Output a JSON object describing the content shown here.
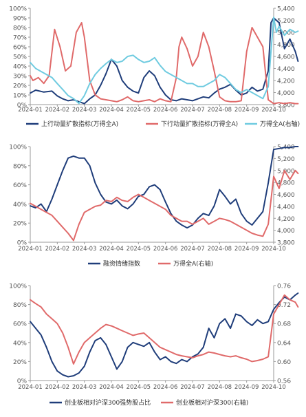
{
  "colors": {
    "navy": "#1f3d7a",
    "red": "#e06a6a",
    "cyan": "#6fcbe0",
    "axis": "#9a9a9a",
    "text": "#555555"
  },
  "chart_data": [
    {
      "type": "line",
      "x_ticks": [
        "2024-01",
        "2024-02",
        "2024-03",
        "2024-04",
        "2024-05",
        "2024-06",
        "2024-07",
        "2024-08",
        "2024-09",
        "2024-10"
      ],
      "left_axis": {
        "ticks": [
          "0%",
          "10%",
          "20%",
          "30%",
          "40%",
          "50%",
          "60%",
          "70%",
          "80%",
          "90%",
          "100%"
        ],
        "range": [
          0,
          100
        ]
      },
      "right_axis": {
        "ticks": [
          "3,800",
          "4,000",
          "4,200",
          "4,400",
          "4,600",
          "4,800",
          "5,000",
          "5,200",
          "5,400"
        ],
        "range": [
          3800,
          5400
        ]
      },
      "legend_position": "bottom",
      "series": [
        {
          "name": "上行动量扩散指标(万得全A)",
          "axis": "left",
          "color": "navy",
          "x": [
            0,
            0.2,
            0.5,
            0.8,
            1.0,
            1.2,
            1.4,
            1.6,
            1.8,
            2.0,
            2.2,
            2.4,
            2.6,
            2.8,
            3.0,
            3.2,
            3.4,
            3.6,
            3.8,
            4.0,
            4.2,
            4.4,
            4.6,
            4.8,
            5.0,
            5.2,
            5.4,
            5.6,
            5.8,
            6.0,
            6.2,
            6.4,
            6.6,
            6.8,
            7.0,
            7.2,
            7.4,
            7.6,
            7.8,
            8.0,
            8.2,
            8.4,
            8.6,
            8.8,
            8.9,
            9.0,
            9.2,
            9.4,
            9.6,
            9.8,
            9.9
          ],
          "y": [
            12,
            15,
            13,
            14,
            9,
            6,
            4,
            5,
            3,
            1,
            6,
            10,
            20,
            32,
            47,
            40,
            25,
            18,
            14,
            12,
            28,
            35,
            30,
            18,
            10,
            5,
            4,
            6,
            5,
            4,
            6,
            8,
            7,
            12,
            16,
            18,
            21,
            15,
            10,
            12,
            18,
            14,
            16,
            35,
            85,
            90,
            85,
            58,
            68,
            55,
            45
          ]
        },
        {
          "name": "下行动量扩散指标(万得全A)",
          "axis": "left",
          "color": "red",
          "x": [
            0,
            0.1,
            0.3,
            0.5,
            0.7,
            0.9,
            1.1,
            1.3,
            1.5,
            1.7,
            1.9,
            2.0,
            2.2,
            2.4,
            2.6,
            2.8,
            3.0,
            3.2,
            3.4,
            3.6,
            3.8,
            4.0,
            4.2,
            4.4,
            4.6,
            4.8,
            5.0,
            5.2,
            5.4,
            5.5,
            5.6,
            5.8,
            6.0,
            6.2,
            6.4,
            6.6,
            6.8,
            7.0,
            7.2,
            7.4,
            7.6,
            7.8,
            8.0,
            8.2,
            8.4,
            8.6,
            8.8,
            9.0,
            9.2,
            9.4,
            9.6,
            9.8,
            9.9
          ],
          "y": [
            30,
            25,
            28,
            22,
            30,
            78,
            60,
            35,
            40,
            75,
            85,
            70,
            25,
            10,
            6,
            5,
            4,
            3,
            5,
            8,
            4,
            3,
            4,
            5,
            3,
            6,
            4,
            3,
            28,
            60,
            70,
            58,
            40,
            50,
            75,
            60,
            35,
            8,
            4,
            3,
            3,
            4,
            55,
            80,
            70,
            60,
            5,
            1,
            2,
            1,
            2,
            1,
            1
          ]
        },
        {
          "name": "万得全A(右轴)",
          "axis": "right",
          "color": "cyan",
          "x": [
            0,
            0.2,
            0.4,
            0.6,
            0.8,
            1.0,
            1.2,
            1.4,
            1.6,
            1.8,
            2.0,
            2.2,
            2.4,
            2.6,
            2.8,
            3.0,
            3.2,
            3.4,
            3.6,
            3.8,
            4.0,
            4.2,
            4.4,
            4.6,
            4.8,
            5.0,
            5.2,
            5.4,
            5.6,
            5.8,
            6.0,
            6.2,
            6.4,
            6.6,
            6.8,
            7.0,
            7.2,
            7.4,
            7.6,
            7.8,
            8.0,
            8.2,
            8.4,
            8.6,
            8.8,
            9.0,
            9.1,
            9.2,
            9.4,
            9.6,
            9.8,
            9.9
          ],
          "y": [
            4500,
            4400,
            4350,
            4300,
            4250,
            4150,
            4050,
            3950,
            3900,
            3820,
            3950,
            4150,
            4300,
            4400,
            4480,
            4550,
            4500,
            4520,
            4600,
            4620,
            4550,
            4500,
            4520,
            4580,
            4450,
            4350,
            4300,
            4250,
            4200,
            4150,
            4150,
            4100,
            4100,
            4150,
            4200,
            4300,
            4250,
            4150,
            4050,
            4000,
            4050,
            4000,
            3950,
            3900,
            4100,
            5250,
            5000,
            5100,
            4950,
            5050,
            5000,
            5020
          ]
        }
      ]
    },
    {
      "type": "line",
      "x_ticks": [
        "2024-01",
        "2024-02",
        "2024-03",
        "2024-04",
        "2024-05",
        "2024-06",
        "2024-07",
        "2024-08",
        "2024-09",
        "2024-10"
      ],
      "left_axis": {
        "ticks": [
          "0%",
          "20%",
          "40%",
          "60%",
          "80%",
          "100%"
        ],
        "range": [
          0,
          100
        ]
      },
      "right_axis": {
        "ticks": [
          "3,800",
          "4,000",
          "4,200",
          "4,400",
          "4,600",
          "4,800",
          "5,000",
          "5,200",
          "5,400"
        ],
        "range": [
          3800,
          5400
        ]
      },
      "legend_position": "bottom",
      "series": [
        {
          "name": "融资情绪指数",
          "axis": "left",
          "color": "navy",
          "x": [
            0,
            0.2,
            0.4,
            0.6,
            0.8,
            1.0,
            1.2,
            1.4,
            1.6,
            1.8,
            2.0,
            2.2,
            2.4,
            2.6,
            2.8,
            3.0,
            3.2,
            3.4,
            3.6,
            3.8,
            4.0,
            4.2,
            4.4,
            4.6,
            4.8,
            5.0,
            5.2,
            5.4,
            5.6,
            5.8,
            6.0,
            6.2,
            6.4,
            6.6,
            6.8,
            7.0,
            7.2,
            7.4,
            7.6,
            7.8,
            8.0,
            8.2,
            8.4,
            8.6,
            8.8,
            9.0,
            9.2,
            9.4,
            9.6,
            9.8,
            9.9
          ],
          "y": [
            38,
            36,
            40,
            32,
            45,
            60,
            75,
            88,
            90,
            88,
            88,
            80,
            62,
            50,
            42,
            40,
            44,
            38,
            35,
            40,
            48,
            50,
            58,
            60,
            55,
            42,
            30,
            22,
            18,
            15,
            18,
            25,
            30,
            28,
            38,
            55,
            48,
            40,
            45,
            30,
            22,
            18,
            25,
            32,
            62,
            97,
            98,
            99,
            99,
            100,
            100
          ]
        },
        {
          "name": "万得全A(右轴)",
          "axis": "right",
          "color": "red",
          "x": [
            0,
            0.2,
            0.4,
            0.6,
            0.8,
            1.0,
            1.2,
            1.4,
            1.6,
            1.8,
            2.0,
            2.2,
            2.4,
            2.6,
            2.8,
            3.0,
            3.2,
            3.4,
            3.6,
            3.8,
            4.0,
            4.2,
            4.4,
            4.6,
            4.8,
            5.0,
            5.2,
            5.4,
            5.6,
            5.8,
            6.0,
            6.2,
            6.4,
            6.6,
            6.8,
            7.0,
            7.2,
            7.4,
            7.6,
            7.8,
            8.0,
            8.2,
            8.4,
            8.6,
            8.8,
            9.0,
            9.2,
            9.4,
            9.6,
            9.8,
            9.9
          ],
          "y": [
            4450,
            4400,
            4350,
            4300,
            4250,
            4150,
            4050,
            3950,
            3830,
            4100,
            4300,
            4350,
            4400,
            4420,
            4500,
            4480,
            4550,
            4500,
            4480,
            4550,
            4600,
            4550,
            4500,
            4450,
            4400,
            4350,
            4250,
            4200,
            4150,
            4150,
            4100,
            4150,
            4200,
            4100,
            4150,
            4200,
            4180,
            4150,
            4100,
            4050,
            4000,
            3950,
            3920,
            3900,
            4100,
            4900,
            4700,
            5000,
            4850,
            5000,
            4950
          ]
        }
      ]
    },
    {
      "type": "line",
      "x_ticks": [
        "2024-01",
        "2024-02",
        "2024-03",
        "2024-04",
        "2024-05",
        "2024-06",
        "2024-07",
        "2024-08",
        "2024-09",
        "2024-10"
      ],
      "left_axis": {
        "ticks": [
          "0%",
          "20%",
          "40%",
          "60%",
          "80%",
          "100%"
        ],
        "range": [
          0,
          100
        ]
      },
      "right_axis": {
        "ticks": [
          "0.56",
          "0.60",
          "0.64",
          "0.68",
          "0.72",
          "0.76"
        ],
        "range": [
          0.56,
          0.76
        ]
      },
      "legend_position": "bottom",
      "series": [
        {
          "name": "创业板相对沪深300强势股占比",
          "axis": "left",
          "color": "navy",
          "x": [
            0,
            0.2,
            0.4,
            0.6,
            0.8,
            1.0,
            1.2,
            1.4,
            1.6,
            1.8,
            2.0,
            2.2,
            2.4,
            2.6,
            2.8,
            3.0,
            3.2,
            3.4,
            3.6,
            3.8,
            4.0,
            4.2,
            4.4,
            4.6,
            4.8,
            5.0,
            5.2,
            5.4,
            5.6,
            5.8,
            6.0,
            6.2,
            6.4,
            6.6,
            6.8,
            7.0,
            7.2,
            7.4,
            7.6,
            7.8,
            8.0,
            8.2,
            8.4,
            8.6,
            8.8,
            9.0,
            9.2,
            9.4,
            9.6,
            9.8,
            9.9
          ],
          "y": [
            62,
            55,
            48,
            35,
            20,
            10,
            6,
            4,
            5,
            8,
            15,
            30,
            42,
            45,
            38,
            25,
            12,
            20,
            35,
            40,
            38,
            36,
            40,
            30,
            22,
            25,
            20,
            18,
            22,
            20,
            25,
            28,
            35,
            55,
            45,
            60,
            65,
            55,
            70,
            68,
            62,
            58,
            64,
            60,
            62,
            75,
            82,
            88,
            85,
            90,
            92
          ]
        },
        {
          "name": "创业板相对沪深300(右轴)",
          "axis": "right",
          "color": "red",
          "x": [
            0,
            0.2,
            0.4,
            0.6,
            0.8,
            1.0,
            1.2,
            1.4,
            1.6,
            1.8,
            2.0,
            2.2,
            2.4,
            2.6,
            2.8,
            3.0,
            3.2,
            3.4,
            3.6,
            3.8,
            4.0,
            4.2,
            4.4,
            4.6,
            4.8,
            5.0,
            5.2,
            5.4,
            5.6,
            5.8,
            6.0,
            6.2,
            6.4,
            6.6,
            6.8,
            7.0,
            7.2,
            7.4,
            7.6,
            7.8,
            8.0,
            8.2,
            8.4,
            8.6,
            8.8,
            9.0,
            9.2,
            9.4,
            9.6,
            9.8,
            9.9
          ],
          "y": [
            0.73,
            0.722,
            0.715,
            0.7,
            0.69,
            0.68,
            0.66,
            0.63,
            0.595,
            0.62,
            0.64,
            0.65,
            0.66,
            0.67,
            0.678,
            0.675,
            0.67,
            0.665,
            0.66,
            0.655,
            0.658,
            0.66,
            0.65,
            0.64,
            0.63,
            0.625,
            0.62,
            0.615,
            0.612,
            0.61,
            0.608,
            0.612,
            0.615,
            0.62,
            0.618,
            0.615,
            0.612,
            0.61,
            0.612,
            0.608,
            0.605,
            0.6,
            0.602,
            0.605,
            0.61,
            0.7,
            0.72,
            0.74,
            0.73,
            0.725,
            0.715
          ]
        }
      ]
    }
  ]
}
